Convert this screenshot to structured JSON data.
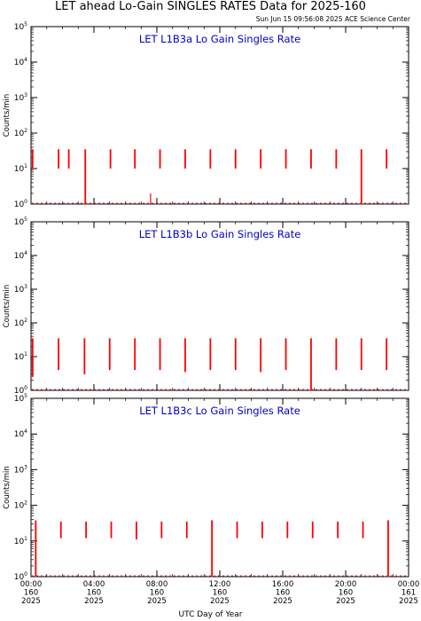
{
  "title": "LET ahead Lo-Gain SINGLES RATES Data for 2025-160",
  "timestamp": "Sun Jun 15 09:56:08 2025 ACE Science Center",
  "xlabel": "UTC Day of Year",
  "colors": {
    "data": "#ff0000",
    "panel_title": "#0000cc",
    "axes": "#000000"
  },
  "chart_data": [
    {
      "type": "line",
      "title": "LET L1B3a Lo Gain Singles Rate",
      "ylabel": "Counts/min",
      "yscale": "log",
      "ylim": [
        1,
        100000
      ],
      "xlim": [
        0,
        24
      ],
      "y_ticks": [
        1,
        10,
        100,
        1000,
        10000,
        100000
      ],
      "spikes": [
        {
          "x": 0.1,
          "top": 35,
          "bottom": 10
        },
        {
          "x": 1.75,
          "top": 35,
          "bottom": 10
        },
        {
          "x": 2.4,
          "top": 35,
          "bottom": 10
        },
        {
          "x": 3.45,
          "top": 35,
          "bottom": 0.9
        },
        {
          "x": 5.05,
          "top": 35,
          "bottom": 10
        },
        {
          "x": 6.6,
          "top": 35,
          "bottom": 10
        },
        {
          "x": 8.2,
          "top": 35,
          "bottom": 10
        },
        {
          "x": 9.8,
          "top": 35,
          "bottom": 10
        },
        {
          "x": 11.4,
          "top": 35,
          "bottom": 10
        },
        {
          "x": 13.0,
          "top": 35,
          "bottom": 10
        },
        {
          "x": 14.6,
          "top": 35,
          "bottom": 10
        },
        {
          "x": 16.2,
          "top": 35,
          "bottom": 10
        },
        {
          "x": 17.8,
          "top": 35,
          "bottom": 10
        },
        {
          "x": 19.4,
          "top": 35,
          "bottom": 10
        },
        {
          "x": 21.0,
          "top": 35,
          "bottom": 0.9
        },
        {
          "x": 22.6,
          "top": 35,
          "bottom": 10
        }
      ],
      "baseline": 1.0,
      "extra_points": [
        {
          "x": 7.6,
          "top": 2.0,
          "bottom": 1.0
        }
      ]
    },
    {
      "type": "line",
      "title": "LET L1B3b Lo Gain Singles Rate",
      "ylabel": "Counts/min",
      "yscale": "log",
      "ylim": [
        1,
        100000
      ],
      "xlim": [
        0,
        24
      ],
      "y_ticks": [
        1,
        10,
        100,
        1000,
        10000,
        100000
      ],
      "spikes": [
        {
          "x": 0.1,
          "top": 35,
          "bottom": 2.5
        },
        {
          "x": 1.75,
          "top": 35,
          "bottom": 4
        },
        {
          "x": 3.4,
          "top": 35,
          "bottom": 3
        },
        {
          "x": 5.0,
          "top": 35,
          "bottom": 4
        },
        {
          "x": 6.6,
          "top": 35,
          "bottom": 4
        },
        {
          "x": 8.2,
          "top": 35,
          "bottom": 4
        },
        {
          "x": 9.8,
          "top": 35,
          "bottom": 3.5
        },
        {
          "x": 11.4,
          "top": 35,
          "bottom": 4
        },
        {
          "x": 13.0,
          "top": 35,
          "bottom": 4
        },
        {
          "x": 14.6,
          "top": 35,
          "bottom": 3.5
        },
        {
          "x": 16.2,
          "top": 35,
          "bottom": 4
        },
        {
          "x": 17.8,
          "top": 35,
          "bottom": 0.9
        },
        {
          "x": 19.4,
          "top": 35,
          "bottom": 4
        },
        {
          "x": 21.0,
          "top": 35,
          "bottom": 4
        },
        {
          "x": 22.6,
          "top": 35,
          "bottom": 4
        }
      ],
      "baseline": 1.0,
      "extra_points": []
    },
    {
      "type": "line",
      "title": "LET L1B3c Lo Gain Singles Rate",
      "ylabel": "Counts/min",
      "yscale": "log",
      "ylim": [
        1,
        100000
      ],
      "xlim": [
        0,
        24
      ],
      "y_ticks": [
        1,
        10,
        100,
        1000,
        10000,
        100000
      ],
      "spikes": [
        {
          "x": 0.3,
          "top": 38,
          "bottom": 0.9
        },
        {
          "x": 1.9,
          "top": 35,
          "bottom": 12
        },
        {
          "x": 3.5,
          "top": 35,
          "bottom": 12
        },
        {
          "x": 5.1,
          "top": 35,
          "bottom": 12
        },
        {
          "x": 6.7,
          "top": 35,
          "bottom": 11
        },
        {
          "x": 8.3,
          "top": 35,
          "bottom": 12
        },
        {
          "x": 9.9,
          "top": 35,
          "bottom": 12
        },
        {
          "x": 11.5,
          "top": 38,
          "bottom": 0.9
        },
        {
          "x": 13.1,
          "top": 35,
          "bottom": 12
        },
        {
          "x": 14.7,
          "top": 35,
          "bottom": 12
        },
        {
          "x": 16.3,
          "top": 35,
          "bottom": 12
        },
        {
          "x": 17.9,
          "top": 35,
          "bottom": 12
        },
        {
          "x": 19.5,
          "top": 35,
          "bottom": 12
        },
        {
          "x": 21.1,
          "top": 35,
          "bottom": 12
        },
        {
          "x": 22.7,
          "top": 38,
          "bottom": 0.9
        }
      ],
      "baseline": 1.0,
      "extra_points": []
    }
  ],
  "x_ticks": [
    {
      "x": 0,
      "time": "00:00",
      "day": "160",
      "year": "2025"
    },
    {
      "x": 4,
      "time": "04:00",
      "day": "160",
      "year": "2025"
    },
    {
      "x": 8,
      "time": "08:00",
      "day": "160",
      "year": "2025"
    },
    {
      "x": 12,
      "time": "12:00",
      "day": "160",
      "year": "2025"
    },
    {
      "x": 16,
      "time": "16:00",
      "day": "160",
      "year": "2025"
    },
    {
      "x": 20,
      "time": "20:00",
      "day": "160",
      "year": "2025"
    },
    {
      "x": 24,
      "time": "00:00",
      "day": "161",
      "year": "2025"
    }
  ]
}
